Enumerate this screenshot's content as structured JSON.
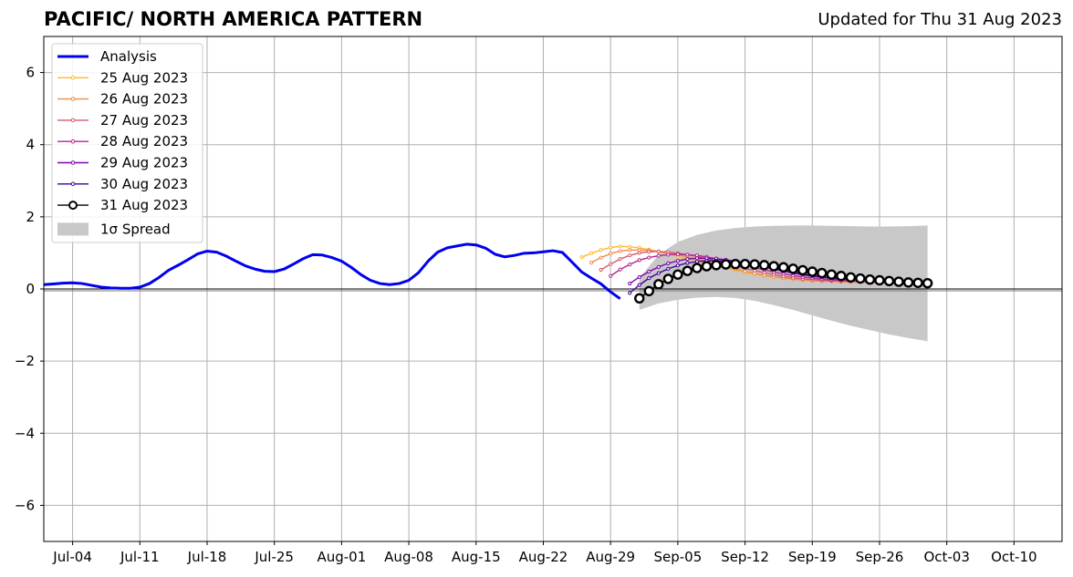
{
  "title": "PACIFIC/ NORTH AMERICA PATTERN",
  "updated": "Updated for Thu 31 Aug 2023",
  "chart_data": {
    "type": "line",
    "title": "PACIFIC/ NORTH AMERICA PATTERN",
    "subtitle": "Updated for Thu 31 Aug 2023",
    "xlabel": "",
    "ylabel": "",
    "xlim": [
      "2023-07-01",
      "2023-10-15"
    ],
    "ylim": [
      -7,
      7
    ],
    "x_ticks": [
      "2023-07-04",
      "2023-07-11",
      "2023-07-18",
      "2023-07-25",
      "2023-08-01",
      "2023-08-08",
      "2023-08-15",
      "2023-08-22",
      "2023-08-29",
      "2023-09-05",
      "2023-09-12",
      "2023-09-19",
      "2023-09-26",
      "2023-10-03",
      "2023-10-10"
    ],
    "x_tick_labels": [
      "Jul-04",
      "Jul-11",
      "Jul-18",
      "Jul-25",
      "Aug-01",
      "Aug-08",
      "Aug-15",
      "Aug-22",
      "Aug-29",
      "Sep-05",
      "Sep-12",
      "Sep-19",
      "Sep-26",
      "Oct-03",
      "Oct-10"
    ],
    "y_ticks": [
      -6,
      -4,
      -2,
      0,
      2,
      4,
      6
    ],
    "y_tick_labels": [
      "−6",
      "−4",
      "−2",
      "0",
      "2",
      "4",
      "6"
    ],
    "grid": true,
    "zero_line": true,
    "legend_position": "top-left",
    "analysis": {
      "name": "Analysis",
      "color": "#0000ee",
      "x": [
        "2023-07-01",
        "2023-07-02",
        "2023-07-03",
        "2023-07-04",
        "2023-07-05",
        "2023-07-06",
        "2023-07-07",
        "2023-07-08",
        "2023-07-09",
        "2023-07-10",
        "2023-07-11",
        "2023-07-12",
        "2023-07-13",
        "2023-07-14",
        "2023-07-15",
        "2023-07-16",
        "2023-07-17",
        "2023-07-18",
        "2023-07-19",
        "2023-07-20",
        "2023-07-21",
        "2023-07-22",
        "2023-07-23",
        "2023-07-24",
        "2023-07-25",
        "2023-07-26",
        "2023-07-27",
        "2023-07-28",
        "2023-07-29",
        "2023-07-30",
        "2023-07-31",
        "2023-08-01",
        "2023-08-02",
        "2023-08-03",
        "2023-08-04",
        "2023-08-05",
        "2023-08-06",
        "2023-08-07",
        "2023-08-08",
        "2023-08-09",
        "2023-08-10",
        "2023-08-11",
        "2023-08-12",
        "2023-08-13",
        "2023-08-14",
        "2023-08-15",
        "2023-08-16",
        "2023-08-17",
        "2023-08-18",
        "2023-08-19",
        "2023-08-20",
        "2023-08-21",
        "2023-08-22",
        "2023-08-23",
        "2023-08-24",
        "2023-08-25",
        "2023-08-26",
        "2023-08-27",
        "2023-08-28",
        "2023-08-29",
        "2023-08-30"
      ],
      "values": [
        0.12,
        0.14,
        0.16,
        0.17,
        0.15,
        0.1,
        0.05,
        0.03,
        0.02,
        0.02,
        0.05,
        0.15,
        0.32,
        0.52,
        0.66,
        0.81,
        0.97,
        1.05,
        1.02,
        0.91,
        0.77,
        0.64,
        0.55,
        0.49,
        0.48,
        0.55,
        0.69,
        0.84,
        0.95,
        0.94,
        0.87,
        0.77,
        0.6,
        0.4,
        0.24,
        0.15,
        0.12,
        0.15,
        0.24,
        0.45,
        0.77,
        1.02,
        1.14,
        1.19,
        1.24,
        1.22,
        1.13,
        0.96,
        0.89,
        0.93,
        0.99,
        1.0,
        1.03,
        1.06,
        1.01,
        0.74,
        0.47,
        0.3,
        0.14,
        -0.08,
        -0.27
      ]
    },
    "series": [
      {
        "name": "25 Aug 2023",
        "color": "#fcb932",
        "start": "2023-08-26",
        "values": [
          0.88,
          0.99,
          1.08,
          1.15,
          1.18,
          1.17,
          1.14,
          1.09,
          1.03,
          0.97,
          0.9,
          0.84,
          0.78,
          0.71,
          0.64,
          0.58,
          0.52,
          0.46,
          0.41,
          0.37,
          0.33,
          0.3,
          0.28,
          0.26,
          0.25,
          0.23,
          0.22,
          0.21,
          0.2,
          0.19,
          0.18,
          0.18
        ]
      },
      {
        "name": "26 Aug 2023",
        "color": "#f08a4b",
        "start": "2023-08-27",
        "values": [
          0.73,
          0.87,
          0.98,
          1.05,
          1.08,
          1.08,
          1.07,
          1.04,
          1.0,
          0.95,
          0.89,
          0.83,
          0.76,
          0.69,
          0.62,
          0.55,
          0.49,
          0.43,
          0.38,
          0.34,
          0.3,
          0.27,
          0.25,
          0.23,
          0.22,
          0.21,
          0.2,
          0.19,
          0.19,
          0.18,
          0.18,
          0.18
        ]
      },
      {
        "name": "27 Aug 2023",
        "color": "#d8576b",
        "start": "2023-08-28",
        "values": [
          0.53,
          0.69,
          0.83,
          0.93,
          1.0,
          1.03,
          1.04,
          1.02,
          0.99,
          0.95,
          0.9,
          0.84,
          0.78,
          0.71,
          0.64,
          0.57,
          0.51,
          0.45,
          0.4,
          0.35,
          0.31,
          0.28,
          0.26,
          0.24,
          0.23,
          0.22,
          0.21,
          0.2,
          0.2,
          0.19,
          0.19
        ]
      },
      {
        "name": "28 Aug 2023",
        "color": "#b12a90",
        "start": "2023-08-29",
        "values": [
          0.36,
          0.54,
          0.68,
          0.8,
          0.87,
          0.92,
          0.95,
          0.96,
          0.95,
          0.93,
          0.89,
          0.84,
          0.78,
          0.72,
          0.66,
          0.59,
          0.53,
          0.47,
          0.42,
          0.37,
          0.33,
          0.3,
          0.27,
          0.25,
          0.24,
          0.23,
          0.22,
          0.21,
          0.2,
          0.2
        ]
      },
      {
        "name": "29 Aug 2023",
        "color": "#7e03a8",
        "start": "2023-08-31",
        "values": [
          0.15,
          0.33,
          0.48,
          0.61,
          0.71,
          0.78,
          0.83,
          0.85,
          0.85,
          0.84,
          0.81,
          0.77,
          0.72,
          0.67,
          0.61,
          0.55,
          0.49,
          0.44,
          0.39,
          0.35,
          0.32,
          0.29,
          0.27,
          0.25,
          0.24,
          0.23,
          0.22,
          0.21
        ]
      },
      {
        "name": "30 Aug 2023",
        "color": "#3c049b",
        "start": "2023-08-31",
        "values": [
          -0.11,
          0.11,
          0.3,
          0.44,
          0.56,
          0.65,
          0.72,
          0.76,
          0.78,
          0.78,
          0.77,
          0.74,
          0.71,
          0.67,
          0.62,
          0.57,
          0.52,
          0.47,
          0.42,
          0.38,
          0.34,
          0.31,
          0.29,
          0.27,
          0.25,
          0.24,
          0.23,
          0.22,
          0.21,
          0.2
        ]
      }
    ],
    "forecast": {
      "name": "31 Aug 2023",
      "color": "#000000",
      "start": "2023-09-01",
      "values": [
        -0.26,
        -0.06,
        0.13,
        0.28,
        0.4,
        0.5,
        0.58,
        0.63,
        0.66,
        0.68,
        0.69,
        0.69,
        0.68,
        0.66,
        0.63,
        0.6,
        0.56,
        0.52,
        0.48,
        0.44,
        0.4,
        0.36,
        0.32,
        0.29,
        0.26,
        0.24,
        0.22,
        0.2,
        0.18,
        0.17,
        0.16
      ]
    },
    "spread": {
      "name": "1σ Spread",
      "color": "#c8c8c8",
      "x": [
        "2023-09-01",
        "2023-09-03",
        "2023-09-05",
        "2023-09-07",
        "2023-09-09",
        "2023-09-11",
        "2023-09-13",
        "2023-09-15",
        "2023-09-17",
        "2023-09-19",
        "2023-09-21",
        "2023-09-23",
        "2023-09-25",
        "2023-09-27",
        "2023-09-29",
        "2023-10-01"
      ],
      "upper": [
        0.3,
        0.95,
        1.3,
        1.5,
        1.62,
        1.69,
        1.73,
        1.75,
        1.76,
        1.76,
        1.75,
        1.74,
        1.73,
        1.73,
        1.74,
        1.76
      ],
      "lower": [
        -0.58,
        -0.4,
        -0.3,
        -0.24,
        -0.22,
        -0.25,
        -0.33,
        -0.45,
        -0.58,
        -0.73,
        -0.88,
        -1.02,
        -1.14,
        -1.26,
        -1.36,
        -1.45
      ]
    }
  }
}
